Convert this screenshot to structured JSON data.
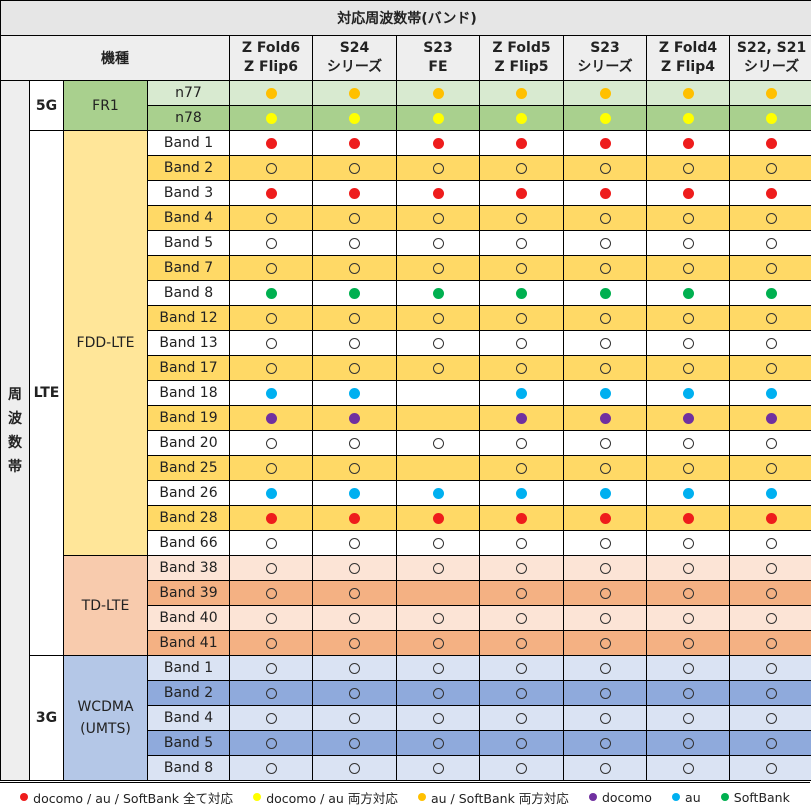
{
  "title": "対応周波数帯(バンド)",
  "kishu_label": "機種",
  "freq_label": "周\n波\n数\n帯",
  "colors": {
    "all3": "#ee1c1c",
    "docomo_au": "#ffff00",
    "au_softbank": "#ffc000",
    "docomo": "#7030a0",
    "au": "#00b0f0",
    "softbank": "#00b050"
  },
  "models": [
    {
      "line1": "Z Fold6",
      "line2": "Z Flip6"
    },
    {
      "line1": "S24",
      "line2": "シリーズ"
    },
    {
      "line1": "S23",
      "line2": "FE"
    },
    {
      "line1": "Z Fold5",
      "line2": "Z Flip5"
    },
    {
      "line1": "S23",
      "line2": "シリーズ"
    },
    {
      "line1": "Z Fold4",
      "line2": "Z Flip4"
    },
    {
      "line1": "S22, S21",
      "line2": "シリーズ"
    }
  ],
  "groups": [
    {
      "gen": "5G",
      "systems": [
        {
          "name": "FR1",
          "bg": "#d8ead0",
          "alt": "#a9d08e",
          "rows": [
            {
              "band": "n77",
              "cells": [
                "au_softbank",
                "au_softbank",
                "au_softbank",
                "au_softbank",
                "au_softbank",
                "au_softbank",
                "au_softbank"
              ]
            },
            {
              "band": "n78",
              "cells": [
                "docomo_au",
                "docomo_au",
                "docomo_au",
                "docomo_au",
                "docomo_au",
                "docomo_au",
                "docomo_au"
              ]
            }
          ]
        }
      ]
    },
    {
      "gen": "LTE",
      "systems": [
        {
          "name": "FDD-LTE",
          "bg": "#ffffff",
          "alt": "#ffd966",
          "side": "#ffe699",
          "rows": [
            {
              "band": "Band 1",
              "cells": [
                "all3",
                "all3",
                "all3",
                "all3",
                "all3",
                "all3",
                "all3"
              ]
            },
            {
              "band": "Band 2",
              "cells": [
                "o",
                "o",
                "o",
                "o",
                "o",
                "o",
                "o"
              ]
            },
            {
              "band": "Band 3",
              "cells": [
                "all3",
                "all3",
                "all3",
                "all3",
                "all3",
                "all3",
                "all3"
              ]
            },
            {
              "band": "Band 4",
              "cells": [
                "o",
                "o",
                "o",
                "o",
                "o",
                "o",
                "o"
              ]
            },
            {
              "band": "Band 5",
              "cells": [
                "o",
                "o",
                "o",
                "o",
                "o",
                "o",
                "o"
              ]
            },
            {
              "band": "Band 7",
              "cells": [
                "o",
                "o",
                "o",
                "o",
                "o",
                "o",
                "o"
              ]
            },
            {
              "band": "Band 8",
              "cells": [
                "softbank",
                "softbank",
                "softbank",
                "softbank",
                "softbank",
                "softbank",
                "softbank"
              ]
            },
            {
              "band": "Band 12",
              "cells": [
                "o",
                "o",
                "o",
                "o",
                "o",
                "o",
                "o"
              ]
            },
            {
              "band": "Band 13",
              "cells": [
                "o",
                "o",
                "o",
                "o",
                "o",
                "o",
                "o"
              ]
            },
            {
              "band": "Band 17",
              "cells": [
                "o",
                "o",
                "o",
                "o",
                "o",
                "o",
                "o"
              ]
            },
            {
              "band": "Band 18",
              "cells": [
                "au",
                "au",
                "",
                "au",
                "au",
                "au",
                "au"
              ]
            },
            {
              "band": "Band 19",
              "cells": [
                "docomo",
                "docomo",
                "",
                "docomo",
                "docomo",
                "docomo",
                "docomo"
              ]
            },
            {
              "band": "Band 20",
              "cells": [
                "o",
                "o",
                "o",
                "o",
                "o",
                "o",
                "o"
              ]
            },
            {
              "band": "Band 25",
              "cells": [
                "o",
                "o",
                "",
                "o",
                "o",
                "o",
                "o"
              ]
            },
            {
              "band": "Band 26",
              "cells": [
                "au",
                "au",
                "au",
                "au",
                "au",
                "au",
                "au"
              ]
            },
            {
              "band": "Band 28",
              "cells": [
                "all3",
                "all3",
                "all3",
                "all3",
                "all3",
                "all3",
                "all3"
              ]
            },
            {
              "band": "Band 66",
              "cells": [
                "o",
                "o",
                "o",
                "o",
                "o",
                "o",
                "o"
              ]
            }
          ]
        },
        {
          "name": "TD-LTE",
          "bg": "#fce4d6",
          "alt": "#f4b183",
          "side": "#f8cbad",
          "rows": [
            {
              "band": "Band 38",
              "cells": [
                "o",
                "o",
                "o",
                "o",
                "o",
                "o",
                "o"
              ]
            },
            {
              "band": "Band 39",
              "cells": [
                "o",
                "o",
                "",
                "o",
                "o",
                "o",
                "o"
              ]
            },
            {
              "band": "Band 40",
              "cells": [
                "o",
                "o",
                "o",
                "o",
                "o",
                "o",
                "o"
              ]
            },
            {
              "band": "Band 41",
              "cells": [
                "o",
                "o",
                "o",
                "o",
                "o",
                "o",
                "o"
              ]
            }
          ]
        }
      ]
    },
    {
      "gen": "3G",
      "systems": [
        {
          "name": "WCDMA\n(UMTS)",
          "bg": "#dae3f3",
          "alt": "#8faadc",
          "side": "#b4c7e7",
          "rows": [
            {
              "band": "Band 1",
              "cells": [
                "o",
                "o",
                "o",
                "o",
                "o",
                "o",
                "o"
              ]
            },
            {
              "band": "Band 2",
              "cells": [
                "o",
                "o",
                "o",
                "o",
                "o",
                "o",
                "o"
              ]
            },
            {
              "band": "Band 4",
              "cells": [
                "o",
                "o",
                "o",
                "o",
                "o",
                "o",
                "o"
              ]
            },
            {
              "band": "Band 5",
              "cells": [
                "o",
                "o",
                "o",
                "o",
                "o",
                "o",
                "o"
              ]
            },
            {
              "band": "Band 8",
              "cells": [
                "o",
                "o",
                "o",
                "o",
                "o",
                "o",
                "o"
              ]
            }
          ]
        }
      ]
    }
  ],
  "legend": [
    {
      "key": "all3",
      "label": "docomo / au / SoftBank 全て対応"
    },
    {
      "key": "docomo_au",
      "label": "docomo / au 両方対応"
    },
    {
      "key": "au_softbank",
      "label": "au / SoftBank 両方対応"
    },
    {
      "key": "docomo",
      "label": "docomo"
    },
    {
      "key": "au",
      "label": "au"
    },
    {
      "key": "softbank",
      "label": "SoftBank"
    }
  ]
}
